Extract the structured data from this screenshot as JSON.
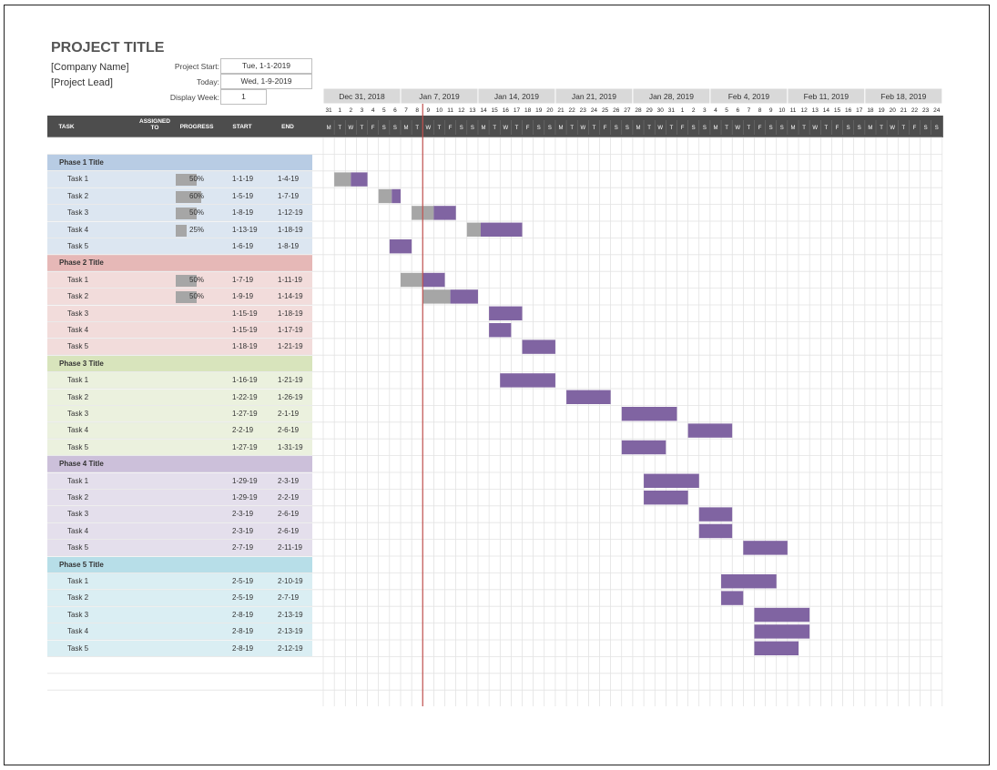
{
  "header": {
    "project_title": "PROJECT TITLE",
    "company_name": "[Company Name]",
    "project_lead": "[Project Lead]",
    "project_start_label": "Project Start:",
    "project_start_value": "Tue, 1-1-2019",
    "today_label": "Today:",
    "today_value": "Wed, 1-9-2019",
    "display_week_label": "Display Week:",
    "display_week_value": "1"
  },
  "columns": {
    "task": "TASK",
    "assigned_to": "ASSIGNED TO",
    "progress": "PROGRESS",
    "start": "START",
    "end": "END"
  },
  "timeline": {
    "weeks": [
      "Dec 31, 2018",
      "Jan 7, 2019",
      "Jan 14, 2019",
      "Jan 21, 2019",
      "Jan 28, 2019",
      "Feb 4, 2019",
      "Feb 11, 2019",
      "Feb 18, 2019"
    ],
    "day_numbers": [
      "31",
      "1",
      "2",
      "3",
      "4",
      "5",
      "6",
      "7",
      "8",
      "9",
      "10",
      "11",
      "12",
      "13",
      "14",
      "15",
      "16",
      "17",
      "18",
      "19",
      "20",
      "21",
      "22",
      "23",
      "24",
      "25",
      "26",
      "27",
      "28",
      "29",
      "30",
      "31",
      "1",
      "2",
      "3",
      "4",
      "5",
      "6",
      "7",
      "8",
      "9",
      "10",
      "11",
      "12",
      "13",
      "14",
      "15",
      "16",
      "17",
      "18",
      "19",
      "20",
      "21",
      "22",
      "23",
      "24"
    ],
    "day_letters": [
      "M",
      "T",
      "W",
      "T",
      "F",
      "S",
      "S"
    ],
    "today_day_index": 8
  },
  "colors": {
    "header_bg": "#4d4d4d",
    "task_bar": "#8064a2",
    "progress_bar": "#a6a6a6",
    "today_line": "#c0504d",
    "week_header_bg": "#d9d9d9"
  },
  "phases": [
    {
      "title": "Phase 1 Title",
      "title_color": "#b8cce4",
      "row_color": "#dce6f1",
      "tasks": [
        {
          "name": "Task 1",
          "progress": "50%",
          "progress_value": 50,
          "start": "1-1-19",
          "end": "1-4-19",
          "start_day": 1,
          "end_day": 4
        },
        {
          "name": "Task 2",
          "progress": "60%",
          "progress_value": 60,
          "start": "1-5-19",
          "end": "1-7-19",
          "start_day": 5,
          "end_day": 7
        },
        {
          "name": "Task 3",
          "progress": "50%",
          "progress_value": 50,
          "start": "1-8-19",
          "end": "1-12-19",
          "start_day": 8,
          "end_day": 12
        },
        {
          "name": "Task 4",
          "progress": "25%",
          "progress_value": 25,
          "start": "1-13-19",
          "end": "1-18-19",
          "start_day": 13,
          "end_day": 18
        },
        {
          "name": "Task 5",
          "progress": "",
          "progress_value": 0,
          "start": "1-6-19",
          "end": "1-8-19",
          "start_day": 6,
          "end_day": 8
        }
      ]
    },
    {
      "title": "Phase 2 Title",
      "title_color": "#e6b8b7",
      "row_color": "#f2dcdb",
      "tasks": [
        {
          "name": "Task 1",
          "progress": "50%",
          "progress_value": 50,
          "start": "1-7-19",
          "end": "1-11-19",
          "start_day": 7,
          "end_day": 11
        },
        {
          "name": "Task 2",
          "progress": "50%",
          "progress_value": 50,
          "start": "1-9-19",
          "end": "1-14-19",
          "start_day": 9,
          "end_day": 14
        },
        {
          "name": "Task 3",
          "progress": "",
          "progress_value": 0,
          "start": "1-15-19",
          "end": "1-18-19",
          "start_day": 15,
          "end_day": 18
        },
        {
          "name": "Task 4",
          "progress": "",
          "progress_value": 0,
          "start": "1-15-19",
          "end": "1-17-19",
          "start_day": 15,
          "end_day": 17
        },
        {
          "name": "Task 5",
          "progress": "",
          "progress_value": 0,
          "start": "1-18-19",
          "end": "1-21-19",
          "start_day": 18,
          "end_day": 21
        }
      ]
    },
    {
      "title": "Phase 3 Title",
      "title_color": "#d8e4bc",
      "row_color": "#ebf1de",
      "tasks": [
        {
          "name": "Task 1",
          "progress": "",
          "progress_value": 0,
          "start": "1-16-19",
          "end": "1-21-19",
          "start_day": 16,
          "end_day": 21
        },
        {
          "name": "Task 2",
          "progress": "",
          "progress_value": 0,
          "start": "1-22-19",
          "end": "1-26-19",
          "start_day": 22,
          "end_day": 26
        },
        {
          "name": "Task 3",
          "progress": "",
          "progress_value": 0,
          "start": "1-27-19",
          "end": "2-1-19",
          "start_day": 27,
          "end_day": 32
        },
        {
          "name": "Task 4",
          "progress": "",
          "progress_value": 0,
          "start": "2-2-19",
          "end": "2-6-19",
          "start_day": 33,
          "end_day": 37
        },
        {
          "name": "Task 5",
          "progress": "",
          "progress_value": 0,
          "start": "1-27-19",
          "end": "1-31-19",
          "start_day": 27,
          "end_day": 31
        }
      ]
    },
    {
      "title": "Phase 4 Title",
      "title_color": "#ccc0da",
      "row_color": "#e4dfec",
      "tasks": [
        {
          "name": "Task 1",
          "progress": "",
          "progress_value": 0,
          "start": "1-29-19",
          "end": "2-3-19",
          "start_day": 29,
          "end_day": 34
        },
        {
          "name": "Task 2",
          "progress": "",
          "progress_value": 0,
          "start": "1-29-19",
          "end": "2-2-19",
          "start_day": 29,
          "end_day": 33
        },
        {
          "name": "Task 3",
          "progress": "",
          "progress_value": 0,
          "start": "2-3-19",
          "end": "2-6-19",
          "start_day": 34,
          "end_day": 37
        },
        {
          "name": "Task 4",
          "progress": "",
          "progress_value": 0,
          "start": "2-3-19",
          "end": "2-6-19",
          "start_day": 34,
          "end_day": 37
        },
        {
          "name": "Task 5",
          "progress": "",
          "progress_value": 0,
          "start": "2-7-19",
          "end": "2-11-19",
          "start_day": 38,
          "end_day": 42
        }
      ]
    },
    {
      "title": "Phase 5 Title",
      "title_color": "#b7dee8",
      "row_color": "#daeef3",
      "tasks": [
        {
          "name": "Task 1",
          "progress": "",
          "progress_value": 0,
          "start": "2-5-19",
          "end": "2-10-19",
          "start_day": 36,
          "end_day": 41
        },
        {
          "name": "Task 2",
          "progress": "",
          "progress_value": 0,
          "start": "2-5-19",
          "end": "2-7-19",
          "start_day": 36,
          "end_day": 38
        },
        {
          "name": "Task 3",
          "progress": "",
          "progress_value": 0,
          "start": "2-8-19",
          "end": "2-13-19",
          "start_day": 39,
          "end_day": 44
        },
        {
          "name": "Task 4",
          "progress": "",
          "progress_value": 0,
          "start": "2-8-19",
          "end": "2-13-19",
          "start_day": 39,
          "end_day": 44
        },
        {
          "name": "Task 5",
          "progress": "",
          "progress_value": 0,
          "start": "2-8-19",
          "end": "2-12-19",
          "start_day": 39,
          "end_day": 43
        }
      ]
    }
  ]
}
